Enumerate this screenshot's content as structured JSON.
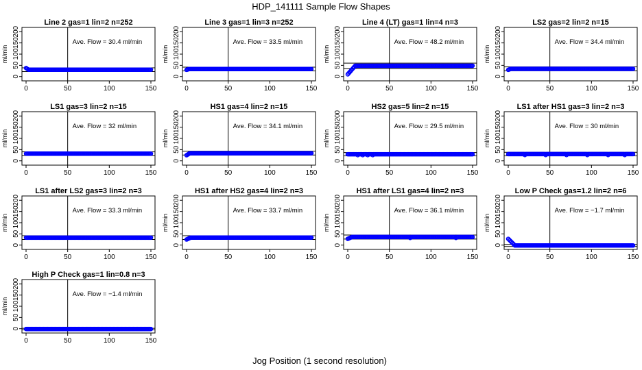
{
  "figure": {
    "title": "HDP_141111  Sample Flow Shapes",
    "xlabel": "Jog Position (1 second resolution)",
    "point_color": "#0000ff"
  },
  "chart_data": [
    {
      "type": "scatter",
      "title": "Line 2 gas=1 lin=2 n=252",
      "ylabel": "ml/min",
      "annotation": "Ave. Flow =  30.4  ml/min",
      "xlim": [
        0,
        150
      ],
      "ylim": [
        -10,
        210
      ],
      "x_ticks": [
        0,
        50,
        100,
        150
      ],
      "y_ticks": [
        0,
        50,
        100,
        150,
        200
      ],
      "vline_x": 50,
      "hlines": [
        22,
        39
      ],
      "level": 30.4,
      "start": 38,
      "ramp_to": 3,
      "dip_x": []
    },
    {
      "type": "scatter",
      "title": "Line 3 gas=1 lin=3 n=252",
      "ylabel": "ml/min",
      "annotation": "Ave. Flow =  33.5  ml/min",
      "xlim": [
        0,
        150
      ],
      "ylim": [
        -10,
        210
      ],
      "x_ticks": [
        0,
        50,
        100,
        150
      ],
      "y_ticks": [
        0,
        50,
        100,
        150,
        200
      ],
      "vline_x": 50,
      "hlines": [
        25,
        42
      ],
      "level": 33.5,
      "start": 30,
      "ramp_to": 3,
      "dip_x": []
    },
    {
      "type": "scatter",
      "title": "Line 4 (LT) gas=1 lin=4 n=3",
      "ylabel": "ml/min",
      "annotation": "Ave. Flow =  48.2  ml/min",
      "xlim": [
        0,
        150
      ],
      "ylim": [
        -10,
        210
      ],
      "x_ticks": [
        0,
        50,
        100,
        150
      ],
      "y_ticks": [
        0,
        50,
        100,
        150,
        200
      ],
      "vline_x": 50,
      "hlines": [
        36,
        60
      ],
      "level": 48.2,
      "start": 10,
      "ramp_to": 9,
      "dip_x": []
    },
    {
      "type": "scatter",
      "title": "LS2 gas=2 lin=2 n=15",
      "ylabel": "ml/min",
      "annotation": "Ave. Flow =  34.4  ml/min",
      "xlim": [
        0,
        150
      ],
      "ylim": [
        -10,
        210
      ],
      "x_ticks": [
        0,
        50,
        100,
        150
      ],
      "y_ticks": [
        0,
        50,
        100,
        150,
        200
      ],
      "vline_x": 50,
      "hlines": [
        26,
        43
      ],
      "level": 34.4,
      "start": 30,
      "ramp_to": 3,
      "dip_x": []
    },
    {
      "type": "scatter",
      "title": "LS1 gas=3 lin=2 n=15",
      "ylabel": "ml/min",
      "annotation": "Ave. Flow =  32  ml/min",
      "xlim": [
        0,
        150
      ],
      "ylim": [
        -10,
        210
      ],
      "x_ticks": [
        0,
        50,
        100,
        150
      ],
      "y_ticks": [
        0,
        50,
        100,
        150,
        200
      ],
      "vline_x": 50,
      "hlines": [
        24,
        40
      ],
      "level": 32,
      "start": 32,
      "ramp_to": 0,
      "dip_x": []
    },
    {
      "type": "scatter",
      "title": "HS1 gas=4 lin=2 n=15",
      "ylabel": "ml/min",
      "annotation": "Ave. Flow =  34.1  ml/min",
      "xlim": [
        0,
        150
      ],
      "ylim": [
        -10,
        210
      ],
      "x_ticks": [
        0,
        50,
        100,
        150
      ],
      "y_ticks": [
        0,
        50,
        100,
        150,
        200
      ],
      "vline_x": 50,
      "hlines": [
        26,
        43
      ],
      "level": 34.1,
      "start": 25,
      "ramp_to": 4,
      "dip_x": []
    },
    {
      "type": "scatter",
      "title": "HS2 gas=5 lin=2 n=15",
      "ylabel": "ml/min",
      "annotation": "Ave. Flow =  29.5  ml/min",
      "xlim": [
        0,
        150
      ],
      "ylim": [
        -10,
        210
      ],
      "x_ticks": [
        0,
        50,
        100,
        150
      ],
      "y_ticks": [
        0,
        50,
        100,
        150,
        200
      ],
      "vline_x": 50,
      "hlines": [
        22,
        37
      ],
      "level": 29.5,
      "start": 29,
      "ramp_to": 0,
      "dip_x": [
        12,
        18,
        24,
        30
      ]
    },
    {
      "type": "scatter",
      "title": "LS1 after HS1 gas=3 lin=2 n=3",
      "ylabel": "ml/min",
      "annotation": "Ave. Flow =  30  ml/min",
      "xlim": [
        0,
        150
      ],
      "ylim": [
        -10,
        210
      ],
      "x_ticks": [
        0,
        50,
        100,
        150
      ],
      "y_ticks": [
        0,
        50,
        100,
        150,
        200
      ],
      "vline_x": 50,
      "hlines": [
        22,
        38
      ],
      "level": 30,
      "start": 30,
      "ramp_to": 0,
      "dip_x": [
        20,
        45,
        70,
        95,
        120,
        140
      ]
    },
    {
      "type": "scatter",
      "title": "LS1 after LS2 gas=3 lin=2 n=3",
      "ylabel": "ml/min",
      "annotation": "Ave. Flow =  33.3  ml/min",
      "xlim": [
        0,
        150
      ],
      "ylim": [
        -10,
        210
      ],
      "x_ticks": [
        0,
        50,
        100,
        150
      ],
      "y_ticks": [
        0,
        50,
        100,
        150,
        200
      ],
      "vline_x": 50,
      "hlines": [
        25,
        42
      ],
      "level": 33.3,
      "start": 33,
      "ramp_to": 0,
      "dip_x": []
    },
    {
      "type": "scatter",
      "title": "HS1 after HS2 gas=4 lin=2 n=3",
      "ylabel": "ml/min",
      "annotation": "Ave. Flow =  33.7  ml/min",
      "xlim": [
        0,
        150
      ],
      "ylim": [
        -10,
        210
      ],
      "x_ticks": [
        0,
        50,
        100,
        150
      ],
      "y_ticks": [
        0,
        50,
        100,
        150,
        200
      ],
      "vline_x": 50,
      "hlines": [
        25,
        42
      ],
      "level": 33.7,
      "start": 25,
      "ramp_to": 5,
      "dip_x": []
    },
    {
      "type": "scatter",
      "title": "HS1 after LS1 gas=4 lin=2 n=3",
      "ylabel": "ml/min",
      "annotation": "Ave. Flow =  36.1  ml/min",
      "xlim": [
        0,
        150
      ],
      "ylim": [
        -10,
        210
      ],
      "x_ticks": [
        0,
        50,
        100,
        150
      ],
      "y_ticks": [
        0,
        50,
        100,
        150,
        200
      ],
      "vline_x": 50,
      "hlines": [
        27,
        45
      ],
      "level": 36.1,
      "start": 28,
      "ramp_to": 5,
      "dip_x": [
        75,
        130
      ]
    },
    {
      "type": "scatter",
      "title": "Low P Check gas=1.2 lin=2 n=6",
      "ylabel": "ml/min",
      "annotation": "Ave. Flow =  −1.7  ml/min",
      "xlim": [
        0,
        150
      ],
      "ylim": [
        -10,
        210
      ],
      "x_ticks": [
        0,
        50,
        100,
        150
      ],
      "y_ticks": [
        0,
        50,
        100,
        150,
        200
      ],
      "vline_x": 50,
      "hlines": [
        -6,
        3
      ],
      "level": -1.7,
      "start": 28,
      "ramp_to": 8,
      "dip_x": []
    },
    {
      "type": "scatter",
      "title": "High P Check gas=1 lin=0.8 n=3",
      "ylabel": "ml/min",
      "annotation": "Ave. Flow =  −1.4  ml/min",
      "xlim": [
        0,
        150
      ],
      "ylim": [
        -10,
        210
      ],
      "x_ticks": [
        0,
        50,
        100,
        150
      ],
      "y_ticks": [
        0,
        50,
        100,
        150,
        200
      ],
      "vline_x": 50,
      "hlines": [
        -5,
        2
      ],
      "level": -1.4,
      "start": -1.4,
      "ramp_to": 0,
      "dip_x": []
    }
  ]
}
